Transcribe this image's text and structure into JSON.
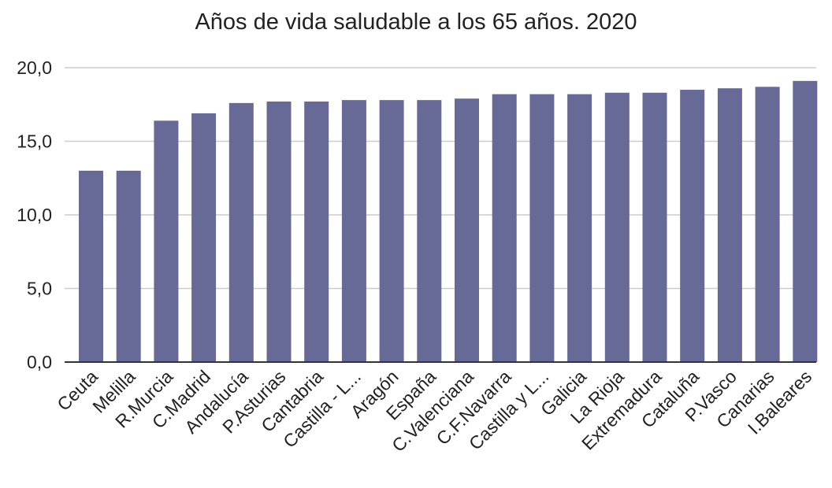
{
  "chart_data": {
    "type": "bar",
    "title": "Años de vida saludable a los 65 años. 2020",
    "xlabel": "",
    "ylabel": "",
    "ylim": [
      0,
      20
    ],
    "yticks": [
      "0,0",
      "5,0",
      "10,0",
      "15,0",
      "20,0"
    ],
    "ytick_values": [
      0,
      5,
      10,
      15,
      20
    ],
    "grid": true,
    "legend": "none",
    "bar_color": "#676996",
    "categories": [
      "Ceuta",
      "Melilla",
      "R.Murcia",
      "C.Madrid",
      "Andalucía",
      "P.Asturias",
      "Cantabria",
      "Castilla - L...",
      "Aragón",
      "España",
      "C.Valenciana",
      "C.F.Navarra",
      "Castilla y L...",
      "Galicia",
      "La Rioja",
      "Extremadura",
      "Cataluña",
      "P.Vasco",
      "Canarias",
      "I.Baleares"
    ],
    "values": [
      13.0,
      13.0,
      16.4,
      16.9,
      17.6,
      17.7,
      17.7,
      17.8,
      17.8,
      17.8,
      17.9,
      18.2,
      18.2,
      18.2,
      18.3,
      18.3,
      18.5,
      18.6,
      18.7,
      19.1
    ]
  }
}
